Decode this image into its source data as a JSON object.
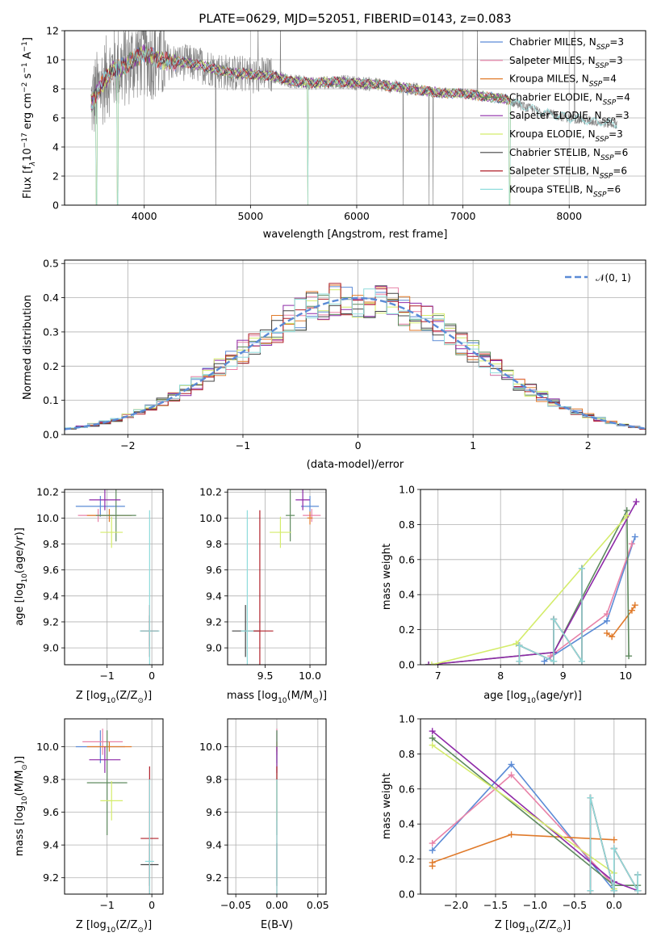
{
  "colors": {
    "Chabrier MILES": "#5b8bd6",
    "Salpeter MILES": "#e882a8",
    "Kroupa MILES": "#e07a2a",
    "Chabrier ELODIE": "#5e8a5e",
    "Salpeter ELODIE": "#8e2aa8",
    "Kroupa ELODIE": "#d4ec6a",
    "Chabrier STELIB": "#444444",
    "Salpeter STELIB": "#b0202a",
    "Kroupa STELIB": "#8fdcdc",
    "data": "#7f7f7f",
    "normal": "#5b8bd6"
  },
  "chart_data": [
    {
      "id": "spectrum",
      "type": "line",
      "title": "PLATE=0629, MJD=52051, FIBERID=0143, z=0.083",
      "xlabel": "wavelength [Angstrom, rest frame]",
      "ylabel_main": "Flux [f",
      "ylabel_sub": "λ",
      "ylabel_rest": "10",
      "ylabel_exp": "−17",
      "ylabel_units": " erg cm",
      "ylabel_units_exp": "−2",
      "ylabel_s": " s",
      "ylabel_s_exp": "−1",
      "ylabel_A": " A",
      "ylabel_A_exp": "−1",
      "ylabel_end": "]",
      "xlim": [
        3250,
        8720
      ],
      "ylim": [
        0,
        12
      ],
      "xticks": [
        4000,
        5000,
        6000,
        7000,
        8000
      ],
      "yticks": [
        0,
        2,
        4,
        6,
        8,
        10,
        12
      ],
      "data_trend": {
        "x": [
          3500,
          3600,
          3700,
          3800,
          3900,
          4000,
          4100,
          4200,
          4400,
          4600,
          4800,
          5000,
          5200,
          5400,
          5600,
          5800,
          6000,
          6200,
          6400,
          6600,
          6800,
          7000,
          7200,
          7400,
          7600,
          7800,
          8000,
          8200,
          8400
        ],
        "y": [
          7.0,
          8.3,
          9.3,
          9.5,
          10.0,
          10.4,
          10.1,
          9.9,
          9.8,
          9.5,
          9.1,
          9.0,
          8.9,
          8.5,
          8.4,
          8.5,
          8.4,
          8.3,
          8.1,
          7.9,
          7.7,
          7.7,
          7.5,
          7.3,
          6.7,
          6.3,
          6.0,
          5.8,
          5.6
        ]
      },
      "model_dips": [
        3550,
        3750,
        5540,
        7440
      ],
      "legend": [
        {
          "name": "Chabrier MILES",
          "n": "3"
        },
        {
          "name": "Salpeter MILES",
          "n": "3"
        },
        {
          "name": "Kroupa MILES",
          "n": "4"
        },
        {
          "name": "Chabrier ELODIE",
          "n": "4"
        },
        {
          "name": "Salpeter ELODIE",
          "n": "3"
        },
        {
          "name": "Kroupa ELODIE",
          "n": "3"
        },
        {
          "name": "Chabrier STELIB",
          "n": "6"
        },
        {
          "name": "Salpeter STELIB",
          "n": "6"
        },
        {
          "name": "Kroupa STELIB",
          "n": "6"
        }
      ],
      "legend_prefix": "N",
      "legend_sub": "SSP"
    },
    {
      "id": "residuals",
      "type": "area",
      "xlabel": "(data-model)/error",
      "ylabel": "Normed distribution",
      "xlim": [
        -2.55,
        2.5
      ],
      "ylim": [
        0,
        0.51
      ],
      "xticks": [
        -2,
        -1,
        0,
        1,
        2
      ],
      "yticks": [
        0.0,
        0.1,
        0.2,
        0.3,
        0.4,
        0.5
      ],
      "bin_width": 0.1,
      "bin_start": -2.55,
      "normal_label": "𝒩(0, 1)",
      "normal_mu": 0,
      "normal_sigma": 1
    },
    {
      "id": "age-vs-Z",
      "type": "scatter",
      "xlabel": "Z [log",
      "xlabel_sub": "10",
      "xlabel_rest": "(Z/Z",
      "xlabel_sun": "⊙",
      "xlabel_end": ")]",
      "ylabel": "age  [log",
      "ylabel_sub": "10",
      "ylabel_rest": "(age/yr)]",
      "xlim": [
        -1.95,
        0.25
      ],
      "ylim": [
        8.87,
        10.22
      ],
      "xticks": [
        -1,
        0
      ],
      "yticks": [
        9.0,
        9.2,
        9.4,
        9.6,
        9.8,
        10.0,
        10.2
      ],
      "points": [
        {
          "model": "Chabrier MILES",
          "x": -1.15,
          "y": 10.09,
          "xerr": 0.55,
          "yerr": 0.08
        },
        {
          "model": "Salpeter MILES",
          "x": -1.2,
          "y": 10.02,
          "xerr": 0.45,
          "yerr": 0.05
        },
        {
          "model": "Kroupa MILES",
          "x": -0.95,
          "y": 10.02,
          "xerr": 0.5,
          "yerr": 0.05
        },
        {
          "model": "Chabrier ELODIE",
          "x": -0.8,
          "y": 10.02,
          "xerr": 0.45,
          "yerr": 0.2
        },
        {
          "model": "Salpeter ELODIE",
          "x": -1.05,
          "y": 10.14,
          "xerr": 0.35,
          "yerr": 0.08
        },
        {
          "model": "Kroupa ELODIE",
          "x": -0.9,
          "y": 9.89,
          "xerr": 0.25,
          "yerr": 0.12
        },
        {
          "model": "Chabrier STELIB",
          "x": -0.05,
          "y": 9.13,
          "xerr": 0.2,
          "yerr": 0.12
        },
        {
          "model": "Salpeter STELIB",
          "x": -0.05,
          "y": 9.13,
          "xerr": 0.2,
          "yerr": 0.2
        },
        {
          "model": "Kroupa STELIB",
          "x": -0.05,
          "y": 9.13,
          "xerr": 0.22,
          "yerr": 0.93
        }
      ]
    },
    {
      "id": "age-vs-mass",
      "type": "scatter",
      "xlabel": "mass [log",
      "xlabel_sub": "10",
      "xlabel_rest": "(M/M",
      "xlabel_sun": "⊙",
      "xlabel_end": ")]",
      "xlim": [
        9.08,
        10.18
      ],
      "ylim": [
        8.87,
        10.22
      ],
      "xticks": [
        9.5,
        10.0
      ],
      "yticks": [
        9.0,
        9.2,
        9.4,
        9.6,
        9.8,
        10.0,
        10.2
      ],
      "points": [
        {
          "model": "Chabrier MILES",
          "x": 10.0,
          "y": 10.09,
          "xerr": 0.1,
          "yerr": 0.08
        },
        {
          "model": "Salpeter MILES",
          "x": 10.02,
          "y": 10.02,
          "xerr": 0.1,
          "yerr": 0.05
        },
        {
          "model": "Kroupa MILES",
          "x": 10.0,
          "y": 10.0,
          "xerr": 0.03,
          "yerr": 0.05
        },
        {
          "model": "Chabrier ELODIE",
          "x": 9.78,
          "y": 10.02,
          "xerr": 0.05,
          "yerr": 0.2
        },
        {
          "model": "Salpeter ELODIE",
          "x": 9.92,
          "y": 10.14,
          "xerr": 0.08,
          "yerr": 0.08
        },
        {
          "model": "Kroupa ELODIE",
          "x": 9.67,
          "y": 9.89,
          "xerr": 0.12,
          "yerr": 0.12
        },
        {
          "model": "Chabrier STELIB",
          "x": 9.28,
          "y": 9.13,
          "xerr": 0.15,
          "yerr": 0.2
        },
        {
          "model": "Salpeter STELIB",
          "x": 9.44,
          "y": 9.13,
          "xerr": 0.15,
          "yerr": 0.93
        },
        {
          "model": "Kroupa STELIB",
          "x": 9.3,
          "y": 9.13,
          "xerr": 0.07,
          "yerr": 0.93
        }
      ]
    },
    {
      "id": "weight-vs-age",
      "type": "line",
      "xlabel": "age  [log",
      "xlabel_sub": "10",
      "xlabel_rest": "(age/yr)]",
      "ylabel": "mass weight",
      "xlim": [
        6.72,
        10.32
      ],
      "ylim": [
        0,
        1.0
      ],
      "xticks": [
        7,
        8,
        9,
        10
      ],
      "yticks": [
        0.0,
        0.2,
        0.4,
        0.6,
        0.8,
        1.0
      ],
      "series": [
        {
          "name": "Chabrier MILES",
          "x": [
            8.7,
            9.7,
            10.15
          ],
          "y": [
            0.02,
            0.25,
            0.73
          ]
        },
        {
          "name": "Salpeter MILES",
          "x": [
            8.8,
            9.7,
            10.1
          ],
          "y": [
            0.05,
            0.29,
            0.69
          ]
        },
        {
          "name": "Kroupa MILES",
          "x": [
            9.7,
            9.78,
            10.1,
            10.15
          ],
          "y": [
            0.18,
            0.16,
            0.31,
            0.34
          ]
        },
        {
          "name": "Chabrier ELODIE",
          "x": [
            6.85,
            8.85,
            10.02,
            10.05
          ],
          "y": [
            0.0,
            0.07,
            0.88,
            0.05
          ]
        },
        {
          "name": "Salpeter ELODIE",
          "x": [
            6.85,
            8.85,
            10.17
          ],
          "y": [
            0.0,
            0.07,
            0.93
          ]
        },
        {
          "name": "Kroupa ELODIE",
          "x": [
            6.9,
            8.25,
            10.02
          ],
          "y": [
            0.0,
            0.12,
            0.85
          ]
        },
        {
          "name": "Chabrier STELIB",
          "x": [
            8.3,
            8.3,
            8.85,
            8.85,
            9.3,
            9.3
          ],
          "y": [
            0.02,
            0.11,
            0.02,
            0.26,
            0.02,
            0.55
          ]
        },
        {
          "name": "Salpeter STELIB",
          "x": [
            8.3,
            8.3,
            8.85,
            8.85,
            9.3,
            9.3
          ],
          "y": [
            0.02,
            0.11,
            0.02,
            0.26,
            0.02,
            0.55
          ]
        },
        {
          "name": "Kroupa STELIB",
          "x": [
            8.3,
            8.3,
            8.85,
            8.85,
            9.3,
            9.3
          ],
          "y": [
            0.02,
            0.11,
            0.02,
            0.26,
            0.02,
            0.55
          ]
        }
      ]
    },
    {
      "id": "mass-vs-Z",
      "type": "scatter",
      "xlabel": "Z [log",
      "xlabel_sub": "10",
      "xlabel_rest": "(Z/Z",
      "xlabel_sun": "⊙",
      "xlabel_end": ")]",
      "ylabel": "mass [log",
      "ylabel_sub": "10",
      "ylabel_rest": "(M/M",
      "ylabel_sun": "⊙",
      "ylabel_end": ")]",
      "xlim": [
        -1.95,
        0.25
      ],
      "ylim": [
        9.1,
        10.17
      ],
      "xticks": [
        -1,
        0
      ],
      "yticks": [
        9.2,
        9.4,
        9.6,
        9.8,
        10.0
      ],
      "points": [
        {
          "model": "Chabrier MILES",
          "x": -1.15,
          "y": 10.0,
          "xerr": 0.55,
          "yerr": 0.1
        },
        {
          "model": "Salpeter MILES",
          "x": -1.1,
          "y": 10.03,
          "xerr": 0.45,
          "yerr": 0.08
        },
        {
          "model": "Kroupa MILES",
          "x": -0.95,
          "y": 10.0,
          "xerr": 0.5,
          "yerr": 0.03
        },
        {
          "model": "Chabrier ELODIE",
          "x": -1.0,
          "y": 9.78,
          "xerr": 0.45,
          "yerr": 0.32
        },
        {
          "model": "Salpeter ELODIE",
          "x": -1.05,
          "y": 9.92,
          "xerr": 0.35,
          "yerr": 0.08
        },
        {
          "model": "Kroupa ELODIE",
          "x": -0.9,
          "y": 9.67,
          "xerr": 0.25,
          "yerr": 0.12
        },
        {
          "model": "Chabrier STELIB",
          "x": -0.05,
          "y": 9.28,
          "xerr": 0.2,
          "yerr": 0.13
        },
        {
          "model": "Salpeter STELIB",
          "x": -0.05,
          "y": 9.44,
          "xerr": 0.2,
          "yerr": 0.44
        },
        {
          "model": "Kroupa STELIB",
          "x": -0.05,
          "y": 9.3,
          "xerr": 0.1,
          "yerr": 0.5
        }
      ]
    },
    {
      "id": "mass-vs-ebv",
      "type": "scatter",
      "xlabel": "E(B-V)",
      "xlim": [
        -0.06,
        0.06
      ],
      "ylim": [
        9.1,
        10.17
      ],
      "xticks": [
        -0.05,
        0.0,
        0.05
      ],
      "xtick_labels": [
        "−0.05",
        "0.00",
        "0.05"
      ],
      "yticks": [
        9.2,
        9.4,
        9.6,
        9.8,
        10.0
      ],
      "points": [
        {
          "model": "Chabrier MILES",
          "x": 0.0,
          "y": 10.0,
          "xerr": 0.0,
          "yerr": 0.1
        },
        {
          "model": "Salpeter MILES",
          "x": 0.0,
          "y": 10.03,
          "xerr": 0.0,
          "yerr": 0.08
        },
        {
          "model": "Kroupa MILES",
          "x": 0.0,
          "y": 10.0,
          "xerr": 0.0,
          "yerr": 0.03
        },
        {
          "model": "Chabrier ELODIE",
          "x": 0.0,
          "y": 9.78,
          "xerr": 0.0,
          "yerr": 0.32
        },
        {
          "model": "Salpeter ELODIE",
          "x": 0.0,
          "y": 9.92,
          "xerr": 0.0,
          "yerr": 0.08
        },
        {
          "model": "Kroupa ELODIE",
          "x": 0.0,
          "y": 9.67,
          "xerr": 0.0,
          "yerr": 0.12
        },
        {
          "model": "Chabrier STELIB",
          "x": 0.0,
          "y": 9.28,
          "xerr": 0.0,
          "yerr": 0.13
        },
        {
          "model": "Salpeter STELIB",
          "x": 0.0,
          "y": 9.44,
          "xerr": 0.0,
          "yerr": 0.44
        },
        {
          "model": "Kroupa STELIB",
          "x": 0.0,
          "y": 9.3,
          "xerr": 0.0,
          "yerr": 0.5
        }
      ]
    },
    {
      "id": "weight-vs-Z",
      "type": "line",
      "xlabel": "Z [log",
      "xlabel_sub": "10",
      "xlabel_rest": "(Z/Z",
      "xlabel_sun": "⊙",
      "xlabel_end": ")]",
      "ylabel": "mass weight",
      "xlim": [
        -2.45,
        0.4
      ],
      "ylim": [
        0,
        1.0
      ],
      "xticks": [
        -2.0,
        -1.5,
        -1.0,
        -0.5,
        0.0
      ],
      "xtick_labels": [
        "−2.0",
        "−1.5",
        "−1.0",
        "−0.5",
        "0.0"
      ],
      "yticks": [
        0.0,
        0.2,
        0.4,
        0.6,
        0.8,
        1.0
      ],
      "series": [
        {
          "name": "Chabrier MILES",
          "x": [
            -2.3,
            -1.3,
            0.0
          ],
          "y": [
            0.25,
            0.74,
            0.02
          ]
        },
        {
          "name": "Salpeter MILES",
          "x": [
            -2.3,
            -1.3,
            0.0
          ],
          "y": [
            0.29,
            0.68,
            0.05
          ]
        },
        {
          "name": "Kroupa MILES",
          "x": [
            -2.3,
            -2.3,
            -1.3,
            0.0
          ],
          "y": [
            0.16,
            0.18,
            0.34,
            0.31
          ]
        },
        {
          "name": "Chabrier ELODIE",
          "x": [
            -2.3,
            0.0,
            0.3,
            0.3
          ],
          "y": [
            0.89,
            0.05,
            0.05,
            0.02
          ]
        },
        {
          "name": "Salpeter ELODIE",
          "x": [
            -2.3,
            0.0,
            0.3
          ],
          "y": [
            0.93,
            0.07,
            0.02
          ]
        },
        {
          "name": "Kroupa ELODIE",
          "x": [
            -2.3,
            0.0,
            0.0
          ],
          "y": [
            0.85,
            0.12,
            0.03
          ]
        },
        {
          "name": "Chabrier STELIB",
          "x": [
            -0.3,
            -0.3,
            0.0,
            0.0,
            0.3,
            0.3
          ],
          "y": [
            0.02,
            0.55,
            0.02,
            0.26,
            0.02,
            0.11
          ]
        },
        {
          "name": "Salpeter STELIB",
          "x": [
            -0.3,
            -0.3,
            0.0,
            0.0,
            0.3,
            0.3
          ],
          "y": [
            0.02,
            0.55,
            0.02,
            0.26,
            0.02,
            0.11
          ]
        },
        {
          "name": "Kroupa STELIB",
          "x": [
            -0.3,
            -0.3,
            0.0,
            0.0,
            0.3,
            0.3
          ],
          "y": [
            0.02,
            0.55,
            0.02,
            0.26,
            0.02,
            0.11
          ]
        }
      ]
    }
  ]
}
